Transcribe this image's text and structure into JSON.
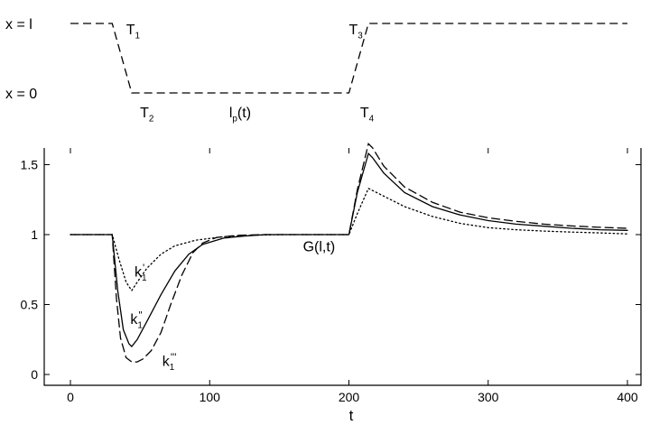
{
  "chart_data": [
    {
      "type": "line",
      "panel": "top",
      "y_tick_labels": [
        "x = l",
        "x = 0"
      ],
      "series": [
        {
          "style": "dashed",
          "x": [
            0,
            30,
            44,
            200,
            214,
            400
          ],
          "y": [
            1,
            1,
            0,
            0,
            1,
            1
          ]
        }
      ],
      "annotations": [
        {
          "base": "T",
          "sub": "1",
          "x": 40,
          "y": 0.92
        },
        {
          "base": "T",
          "sub": "2",
          "x": 50,
          "y": -0.27
        },
        {
          "base": "l",
          "sub": "p",
          "suffix": "(t)",
          "x": 114,
          "y": -0.27
        },
        {
          "base": "T",
          "sub": "3",
          "x": 200,
          "y": 0.92
        },
        {
          "base": "T",
          "sub": "4",
          "x": 208,
          "y": -0.27
        }
      ]
    },
    {
      "type": "line",
      "panel": "bottom",
      "xlabel": "t",
      "ylabel": "",
      "xlim": [
        -12,
        405
      ],
      "ylim": [
        -0.03,
        1.88
      ],
      "x_ticks": [
        0,
        100,
        200,
        300,
        400
      ],
      "y_ticks": [
        0,
        0.5,
        1,
        1.5
      ],
      "y_tick_labels": [
        "0",
        "0.5",
        "1",
        "1.5"
      ],
      "grid": false,
      "series": [
        {
          "label": "k1'",
          "style": "dotted",
          "x": [
            0,
            30,
            35,
            40,
            44,
            48,
            55,
            65,
            75,
            90,
            110,
            130,
            150,
            170,
            200,
            206,
            214,
            220,
            240,
            260,
            280,
            300,
            320,
            340,
            360,
            380,
            400
          ],
          "y": [
            1,
            1,
            0.82,
            0.66,
            0.6,
            0.66,
            0.76,
            0.86,
            0.92,
            0.96,
            0.985,
            0.995,
            1,
            1,
            1,
            1.15,
            1.33,
            1.3,
            1.2,
            1.13,
            1.08,
            1.05,
            1.035,
            1.025,
            1.018,
            1.012,
            1.005
          ]
        },
        {
          "label": "k1''",
          "style": "solid",
          "x": [
            0,
            30,
            34,
            38,
            42,
            44,
            48,
            55,
            65,
            75,
            85,
            95,
            110,
            125,
            140,
            160,
            200,
            206,
            214,
            217,
            225,
            240,
            260,
            280,
            300,
            320,
            340,
            360,
            380,
            400
          ],
          "y": [
            1,
            1,
            0.6,
            0.32,
            0.22,
            0.2,
            0.25,
            0.38,
            0.57,
            0.74,
            0.86,
            0.93,
            0.975,
            0.99,
            1,
            1,
            1,
            1.3,
            1.58,
            1.55,
            1.44,
            1.3,
            1.2,
            1.14,
            1.1,
            1.075,
            1.06,
            1.045,
            1.035,
            1.03
          ]
        },
        {
          "label": "k1'''",
          "style": "dashed",
          "x": [
            0,
            30,
            33,
            36,
            40,
            44,
            48,
            52,
            58,
            65,
            72,
            80,
            88,
            95,
            105,
            120,
            140,
            170,
            200,
            206,
            214,
            217,
            225,
            240,
            260,
            280,
            300,
            320,
            340,
            360,
            380,
            400
          ],
          "y": [
            1,
            1,
            0.55,
            0.26,
            0.12,
            0.09,
            0.09,
            0.11,
            0.17,
            0.3,
            0.5,
            0.71,
            0.87,
            0.94,
            0.98,
            0.995,
            1,
            1,
            1,
            1.32,
            1.65,
            1.62,
            1.49,
            1.34,
            1.23,
            1.16,
            1.12,
            1.095,
            1.075,
            1.062,
            1.052,
            1.045
          ]
        }
      ],
      "annotations": [
        {
          "base": "k",
          "sub": "1",
          "sup": "'",
          "x": 46,
          "y": 0.74
        },
        {
          "base": "k",
          "sub": "1",
          "sup": "''",
          "x": 43,
          "y": 0.4
        },
        {
          "base": "k",
          "sub": "1",
          "sup": "'''",
          "x": 66,
          "y": 0.1
        },
        {
          "base": "G(l,t)",
          "x": 167,
          "y": 0.92
        }
      ]
    }
  ]
}
